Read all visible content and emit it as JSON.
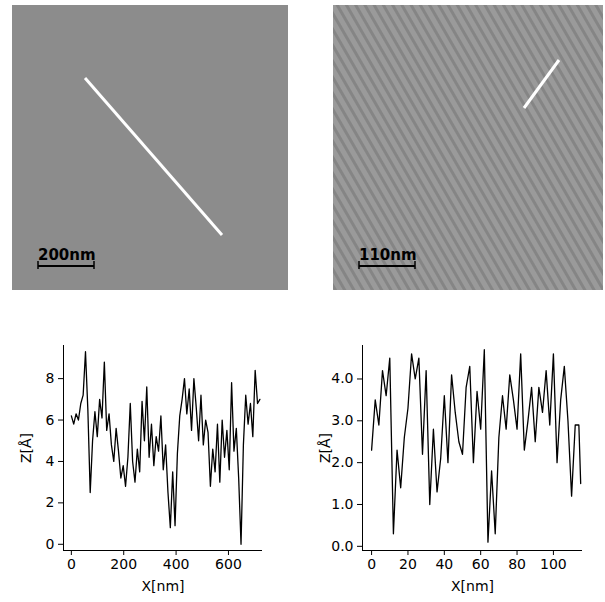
{
  "chart_data": [
    {
      "type": "line",
      "x_label": "X[nm]",
      "y_label": "Z[Å]",
      "color": "#000000",
      "x": [
        0,
        9,
        18,
        27,
        36,
        45,
        54,
        63,
        72,
        81,
        90,
        99,
        108,
        117,
        126,
        135,
        144,
        153,
        162,
        171,
        180,
        189,
        198,
        207,
        216,
        225,
        234,
        243,
        252,
        261,
        270,
        279,
        288,
        297,
        306,
        315,
        324,
        333,
        342,
        351,
        360,
        369,
        378,
        387,
        396,
        405,
        414,
        423,
        432,
        441,
        450,
        459,
        468,
        477,
        486,
        495,
        504,
        513,
        522,
        531,
        540,
        549,
        558,
        567,
        576,
        585,
        594,
        603,
        612,
        621,
        630,
        639,
        648,
        657,
        666,
        675,
        684,
        693,
        702,
        711,
        720
      ],
      "values": [
        6.2,
        5.8,
        6.3,
        6.0,
        6.8,
        7.2,
        9.3,
        6.5,
        2.5,
        5.0,
        6.4,
        5.2,
        7.0,
        6.1,
        8.8,
        5.5,
        6.3,
        4.8,
        4.0,
        5.6,
        4.5,
        3.2,
        3.8,
        2.8,
        4.2,
        6.8,
        4.0,
        3.0,
        4.6,
        3.5,
        6.9,
        5.0,
        7.6,
        4.2,
        5.8,
        3.8,
        5.2,
        4.5,
        6.2,
        3.6,
        4.8,
        2.5,
        0.8,
        3.5,
        0.9,
        4.4,
        6.2,
        7.0,
        8.0,
        6.3,
        7.5,
        5.5,
        8.0,
        6.6,
        5.0,
        7.2,
        4.8,
        6.0,
        5.4,
        2.8,
        4.6,
        3.5,
        5.8,
        3.0,
        6.0,
        4.2,
        5.5,
        3.6,
        7.8,
        4.5,
        5.6,
        3.2,
        0.0,
        4.8,
        7.2,
        5.8,
        6.8,
        5.2,
        8.4,
        6.8,
        7.0
      ],
      "xlim": [
        -30,
        730
      ],
      "ylim": [
        -0.3,
        9.6
      ],
      "xticks": [
        0,
        200,
        400,
        600
      ],
      "yticks": [
        0,
        2,
        4,
        6,
        8
      ]
    },
    {
      "type": "line",
      "x_label": "X[nm]",
      "y_label": "Z[Å]",
      "color": "#000000",
      "x": [
        0,
        2,
        4,
        6,
        8,
        10,
        12,
        14,
        16,
        18,
        20,
        22,
        24,
        26,
        28,
        30,
        32,
        34,
        36,
        38,
        40,
        42,
        44,
        46,
        48,
        50,
        52,
        54,
        56,
        58,
        60,
        62,
        64,
        66,
        68,
        70,
        72,
        74,
        76,
        78,
        80,
        82,
        84,
        86,
        88,
        90,
        92,
        94,
        96,
        98,
        100,
        102,
        104,
        106,
        108,
        110,
        112,
        114,
        115
      ],
      "values": [
        2.3,
        3.5,
        2.9,
        4.2,
        3.6,
        4.5,
        0.3,
        2.3,
        1.4,
        2.6,
        3.3,
        4.6,
        4.0,
        4.5,
        2.2,
        4.2,
        1.0,
        2.8,
        1.3,
        2.1,
        3.6,
        2.0,
        4.1,
        3.2,
        2.5,
        2.2,
        3.8,
        4.3,
        2.0,
        3.7,
        2.8,
        4.7,
        0.1,
        1.8,
        0.3,
        2.6,
        3.6,
        2.8,
        4.1,
        3.5,
        2.8,
        4.6,
        2.3,
        3.0,
        3.8,
        2.5,
        3.8,
        3.2,
        4.2,
        2.9,
        4.6,
        2.0,
        3.5,
        4.3,
        3.0,
        1.2,
        2.9,
        2.9,
        1.5
      ],
      "xlim": [
        -5,
        116
      ],
      "ylim": [
        -0.1,
        4.8
      ],
      "xticks": [
        0,
        20,
        40,
        60,
        80,
        100
      ],
      "yticks": [
        0,
        1,
        2,
        3,
        4
      ]
    }
  ],
  "images": [
    {
      "scale_bar": "200nm"
    },
    {
      "scale_bar": "110nm"
    }
  ]
}
